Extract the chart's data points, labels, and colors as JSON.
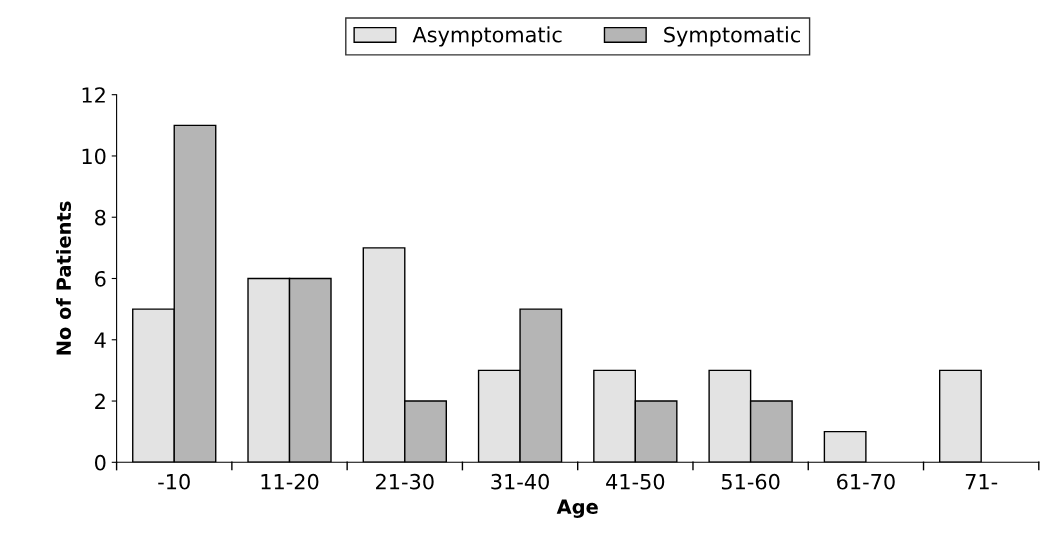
{
  "chart_data": {
    "type": "bar",
    "xlabel": "Age",
    "ylabel": "No of Patients",
    "categories": [
      "-10",
      "11-20",
      "21-30",
      "31-40",
      "41-50",
      "51-60",
      "61-70",
      "71-"
    ],
    "series": [
      {
        "name": "Asymptomatic",
        "color": "#e3e3e3",
        "values": [
          5,
          6,
          7,
          3,
          3,
          3,
          1,
          3
        ]
      },
      {
        "name": "Symptomatic",
        "color": "#b5b5b5",
        "values": [
          11,
          6,
          2,
          5,
          2,
          2,
          null,
          null
        ]
      }
    ],
    "ylim": [
      0,
      12
    ],
    "yticks": [
      0,
      2,
      4,
      6,
      8,
      10,
      12
    ],
    "grid": false,
    "legend": "top"
  }
}
